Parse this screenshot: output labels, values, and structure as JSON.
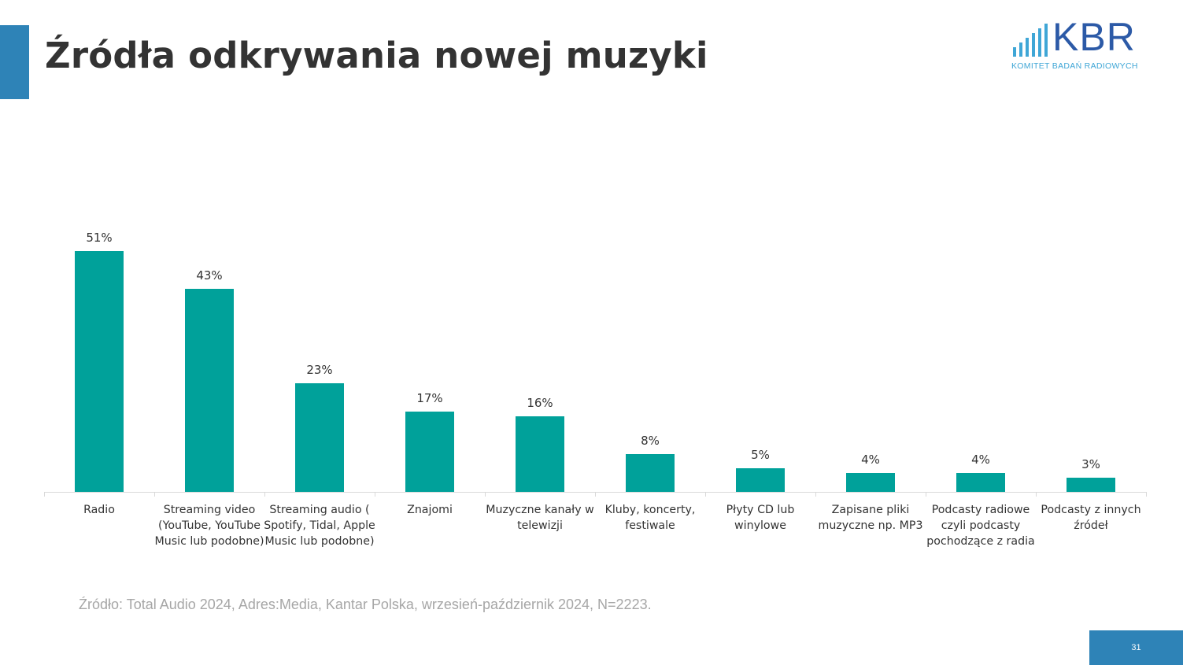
{
  "header": {
    "title": "Źródła odkrywania nowej muzyki"
  },
  "logo": {
    "name": "KBR",
    "subtitle": "KOMITET BADAŃ RADIOWYCH",
    "color": "#2c5aa7",
    "subtitle_color": "#3fa6d6"
  },
  "colors": {
    "accent": "#2e83b7",
    "bar": "#00a19a",
    "text": "#333333",
    "muted": "#a6a6a6"
  },
  "chart_data": {
    "type": "bar",
    "title": "",
    "xlabel": "",
    "ylabel": "",
    "ylim": [
      0,
      55
    ],
    "grid": false,
    "legend": "none",
    "categories": [
      [
        "Radio"
      ],
      [
        "Streaming video",
        "(YouTube, YouTube",
        "Music lub podobne)"
      ],
      [
        "Streaming audio (",
        "Spotify, Tidal, Apple",
        "Music lub podobne)"
      ],
      [
        "Znajomi"
      ],
      [
        "Muzyczne kanały w",
        "telewizji"
      ],
      [
        "Kluby, koncerty,",
        "festiwale"
      ],
      [
        "Płyty CD lub",
        "winylowe"
      ],
      [
        "Zapisane pliki",
        "muzyczne np. MP3"
      ],
      [
        "Podcasty radiowe",
        "czyli podcasty",
        "pochodzące z radia"
      ],
      [
        "Podcasty z innych",
        "źródeł"
      ]
    ],
    "values": [
      51,
      43,
      23,
      17,
      16,
      8,
      5,
      4,
      4,
      3
    ],
    "value_labels": [
      "51%",
      "43%",
      "23%",
      "17%",
      "16%",
      "8%",
      "5%",
      "4%",
      "4%",
      "3%"
    ]
  },
  "footer": {
    "source": "Źródło: Total Audio 2024, Adres:Media, Kantar Polska, wrzesień-październik 2024, N=2223.",
    "page_number": "31"
  }
}
